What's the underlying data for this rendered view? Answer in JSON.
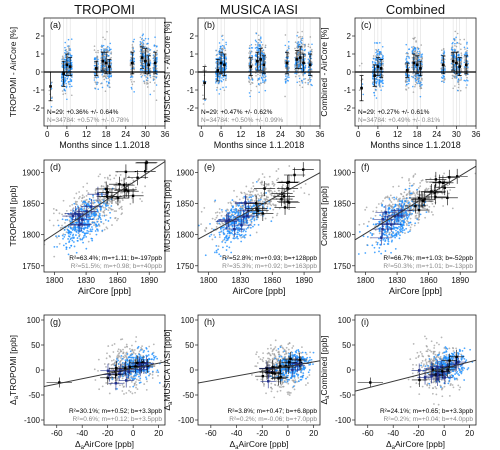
{
  "figure": {
    "col_titles": [
      "TROPOMI",
      "MUSICA IASI",
      "Combined"
    ],
    "colors": {
      "gray_points": "#9a9a9a",
      "blue_points": "#1e90ff",
      "navy_points": "#1f2e8c",
      "black_points": "#000000",
      "fit_line": "#3a3a3a",
      "zero_line": "#000000",
      "stats_primary": "#000000",
      "stats_secondary": "#888888"
    }
  },
  "chart_data": [
    {
      "panel": "a",
      "type": "scatter",
      "row": "time series",
      "column": "TROPOMI",
      "xlabel": "Months since 1.1.2018",
      "ylabel": "TROPOMI - AirCore [%]",
      "xlim": [
        -1,
        36
      ],
      "ylim": [
        -3,
        3
      ],
      "xticks": [
        0,
        6,
        12,
        18,
        24,
        30,
        36
      ],
      "yticks": [
        -2,
        -1,
        0,
        1,
        2
      ],
      "annotations": [
        "N=29: +0.36% +/- 0.64%",
        "N=34784: +0.57% +/- 0.78%"
      ],
      "clusters": [
        {
          "x": 1,
          "mean": -0.8,
          "err": 0.8
        },
        {
          "x": 5,
          "mean": -0.1,
          "err": 0.7
        },
        {
          "x": 6,
          "mean": 0.4,
          "err": 0.6
        },
        {
          "x": 7,
          "mean": 0.3,
          "err": 0.5
        },
        {
          "x": 15,
          "mean": 0.2,
          "err": 0.4
        },
        {
          "x": 17,
          "mean": 0.6,
          "err": 0.5
        },
        {
          "x": 18,
          "mean": 0.5,
          "err": 0.6
        },
        {
          "x": 19,
          "mean": 0.3,
          "err": 0.4
        },
        {
          "x": 26,
          "mean": 0.5,
          "err": 0.6
        },
        {
          "x": 29,
          "mean": 0.8,
          "err": 0.6
        },
        {
          "x": 30,
          "mean": 0.6,
          "err": 0.7
        },
        {
          "x": 31,
          "mean": 0.4,
          "err": 0.5
        },
        {
          "x": 33,
          "mean": 0.5,
          "err": 0.6
        }
      ]
    },
    {
      "panel": "b",
      "type": "scatter",
      "row": "time series",
      "column": "MUSICA IASI",
      "xlabel": "Months since 1.1.2018",
      "ylabel": "MUSICA IASI - AirCore [%]",
      "xlim": [
        -1,
        36
      ],
      "ylim": [
        -3,
        3
      ],
      "xticks": [
        0,
        6,
        12,
        18,
        24,
        30,
        36
      ],
      "yticks": [
        -2,
        -1,
        0,
        1,
        2
      ],
      "annotations": [
        "N=29: +0.47% +/- 0.62%",
        "N=34784: +0.50% +/- 0.99%"
      ],
      "clusters": [
        {
          "x": 1,
          "mean": -0.6,
          "err": 0.9
        },
        {
          "x": 5,
          "mean": 0.1,
          "err": 0.6
        },
        {
          "x": 6,
          "mean": 0.5,
          "err": 0.6
        },
        {
          "x": 7,
          "mean": 0.4,
          "err": 0.6
        },
        {
          "x": 15,
          "mean": 0.3,
          "err": 0.5
        },
        {
          "x": 17,
          "mean": 0.6,
          "err": 0.5
        },
        {
          "x": 18,
          "mean": 0.7,
          "err": 0.6
        },
        {
          "x": 19,
          "mean": 0.4,
          "err": 0.5
        },
        {
          "x": 26,
          "mean": 0.5,
          "err": 0.6
        },
        {
          "x": 29,
          "mean": 0.7,
          "err": 0.5
        },
        {
          "x": 30,
          "mean": 0.8,
          "err": 0.6
        },
        {
          "x": 31,
          "mean": 0.5,
          "err": 0.5
        },
        {
          "x": 33,
          "mean": 0.4,
          "err": 0.6
        }
      ]
    },
    {
      "panel": "c",
      "type": "scatter",
      "row": "time series",
      "column": "Combined",
      "xlabel": "Months since 1.1.2018",
      "ylabel": "Combined - AirCore [%]",
      "xlim": [
        -1,
        36
      ],
      "ylim": [
        -3,
        3
      ],
      "xticks": [
        0,
        6,
        12,
        18,
        24,
        30,
        36
      ],
      "yticks": [
        -2,
        -1,
        0,
        1,
        2
      ],
      "annotations": [
        "N=29: +0.27% +/- 0.61%",
        "N=34784: +0.49% +/- 0.81%"
      ],
      "clusters": [
        {
          "x": 1,
          "mean": -0.9,
          "err": 0.7
        },
        {
          "x": 5,
          "mean": -0.2,
          "err": 0.6
        },
        {
          "x": 6,
          "mean": 0.3,
          "err": 0.5
        },
        {
          "x": 7,
          "mean": 0.2,
          "err": 0.5
        },
        {
          "x": 15,
          "mean": 0.1,
          "err": 0.4
        },
        {
          "x": 17,
          "mean": 0.5,
          "err": 0.5
        },
        {
          "x": 18,
          "mean": 0.4,
          "err": 0.5
        },
        {
          "x": 19,
          "mean": 0.2,
          "err": 0.4
        },
        {
          "x": 26,
          "mean": 0.4,
          "err": 0.5
        },
        {
          "x": 29,
          "mean": 0.6,
          "err": 0.5
        },
        {
          "x": 30,
          "mean": 0.5,
          "err": 0.6
        },
        {
          "x": 31,
          "mean": 0.3,
          "err": 0.5
        },
        {
          "x": 33,
          "mean": 0.4,
          "err": 0.5
        }
      ]
    },
    {
      "panel": "d",
      "type": "scatter",
      "row": "scatter",
      "column": "TROPOMI",
      "xlabel": "AirCore [ppb]",
      "ylabel": "TROPOMI [ppb]",
      "xlim": [
        1790,
        1905
      ],
      "ylim": [
        1740,
        1920
      ],
      "xticks": [
        1800,
        1830,
        1860,
        1890
      ],
      "yticks": [
        1750,
        1800,
        1850,
        1900
      ],
      "annotations": [
        "R²=63.4%; m=+1.11; b=-197ppb",
        "R²=51.5%; m=+0.98; b=+40ppb"
      ],
      "fit": {
        "m": 1.11,
        "b": -197
      }
    },
    {
      "panel": "e",
      "type": "scatter",
      "row": "scatter",
      "column": "MUSICA IASI",
      "xlabel": "AirCore [ppb]",
      "ylabel": "MUSICA IASI [ppb]",
      "xlim": [
        1790,
        1905
      ],
      "ylim": [
        1740,
        1920
      ],
      "xticks": [
        1800,
        1830,
        1860,
        1890
      ],
      "yticks": [
        1750,
        1800,
        1850,
        1900
      ],
      "annotations": [
        "R²=52.8%; m=+0.93; b=+128ppb",
        "R²=35.3%; m=+0.92; b=+163ppb"
      ],
      "fit": {
        "m": 0.93,
        "b": 128
      }
    },
    {
      "panel": "f",
      "type": "scatter",
      "row": "scatter",
      "column": "Combined",
      "xlabel": "AirCore [ppb]",
      "ylabel": "Combined [ppb]",
      "xlim": [
        1790,
        1905
      ],
      "ylim": [
        1740,
        1920
      ],
      "xticks": [
        1800,
        1830,
        1860,
        1890
      ],
      "yticks": [
        1750,
        1800,
        1850,
        1900
      ],
      "annotations": [
        "R²=66.7%; m=+1.03; b=-52ppb",
        "R²=50.3%; m=+1.01; b=-13ppb"
      ],
      "fit": {
        "m": 1.03,
        "b": -52
      }
    },
    {
      "panel": "g",
      "type": "scatter",
      "row": "anomaly",
      "column": "TROPOMI",
      "xlabel": "ΔaAirCore [ppb]",
      "ylabel": "ΔaTROPOMI [ppb]",
      "xlim": [
        -70,
        25
      ],
      "ylim": [
        -110,
        110
      ],
      "xticks": [
        -60,
        -40,
        -20,
        0,
        20
      ],
      "yticks": [
        -100,
        -50,
        0,
        50,
        100
      ],
      "annotations": [
        "R²=30.1%; m=+0.52; b=+3.3ppb",
        "R²=0.6%; m=+0.12; b=+3.5ppb"
      ],
      "fit": {
        "m": 0.52,
        "b": 3.3
      }
    },
    {
      "panel": "h",
      "type": "scatter",
      "row": "anomaly",
      "column": "MUSICA IASI",
      "xlabel": "ΔaAirCore [ppb]",
      "ylabel": "ΔaMUSICA IASI [ppb]",
      "xlim": [
        -70,
        25
      ],
      "ylim": [
        -110,
        110
      ],
      "xticks": [
        -60,
        -40,
        -20,
        0,
        20
      ],
      "yticks": [
        -100,
        -50,
        0,
        50,
        100
      ],
      "annotations": [
        "R²=3.8%; m=+0.47; b=+6.8ppb",
        "R²=0.2%; m=-0.06; b=+7.0ppb"
      ],
      "fit": {
        "m": 0.47,
        "b": 6.8
      }
    },
    {
      "panel": "i",
      "type": "scatter",
      "row": "anomaly",
      "column": "Combined",
      "xlabel": "ΔaAirCore [ppb]",
      "ylabel": "ΔaCombined [ppb]",
      "xlim": [
        -70,
        25
      ],
      "ylim": [
        -110,
        110
      ],
      "xticks": [
        -60,
        -40,
        -20,
        0,
        20
      ],
      "yticks": [
        -100,
        -50,
        0,
        50,
        100
      ],
      "annotations": [
        "R²=24.1%; m=+0.65; b=+3.3ppb",
        "R²=0.2%; m=+0.04; b=+4.0ppb"
      ],
      "fit": {
        "m": 0.65,
        "b": 3.3
      }
    }
  ]
}
